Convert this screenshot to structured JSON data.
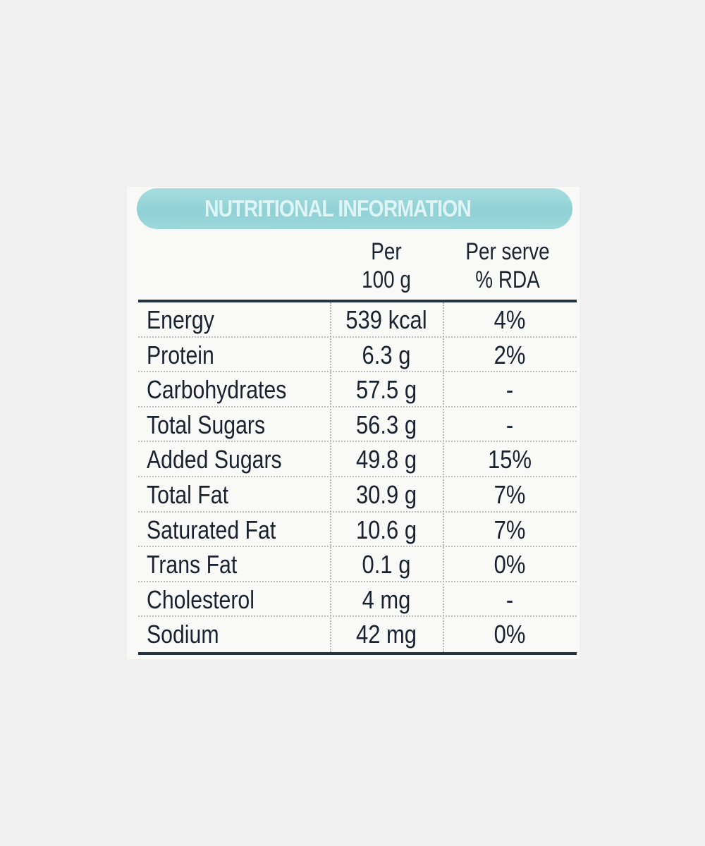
{
  "label": {
    "title": "NUTRITIONAL INFORMATION",
    "columns": {
      "per_100g_line1": "Per",
      "per_100g_line2": "100 g",
      "per_serve_line1": "Per serve",
      "per_serve_line2": "% RDA"
    },
    "rows": [
      {
        "name": "Energy",
        "per_100g": "539 kcal",
        "rda": "4%"
      },
      {
        "name": "Protein",
        "per_100g": "6.3 g",
        "rda": "2%"
      },
      {
        "name": "Carbohydrates",
        "per_100g": "57.5 g",
        "rda": "-"
      },
      {
        "name": "Total Sugars",
        "per_100g": "56.3 g",
        "rda": "-"
      },
      {
        "name": "Added Sugars",
        "per_100g": "49.8 g",
        "rda": "15%"
      },
      {
        "name": "Total Fat",
        "per_100g": "30.9 g",
        "rda": "7%"
      },
      {
        "name": "Saturated Fat",
        "per_100g": "10.6 g",
        "rda": "7%"
      },
      {
        "name": "Trans Fat",
        "per_100g": "0.1 g",
        "rda": "0%"
      },
      {
        "name": "Cholesterol",
        "per_100g": "4 mg",
        "rda": "-"
      },
      {
        "name": "Sodium",
        "per_100g": "42 mg",
        "rda": "0%"
      }
    ]
  },
  "colors": {
    "background": "#f0f0f0",
    "panel": "#f9f9f7",
    "title_pill": "#8fd1d6",
    "text": "#1c2430"
  }
}
